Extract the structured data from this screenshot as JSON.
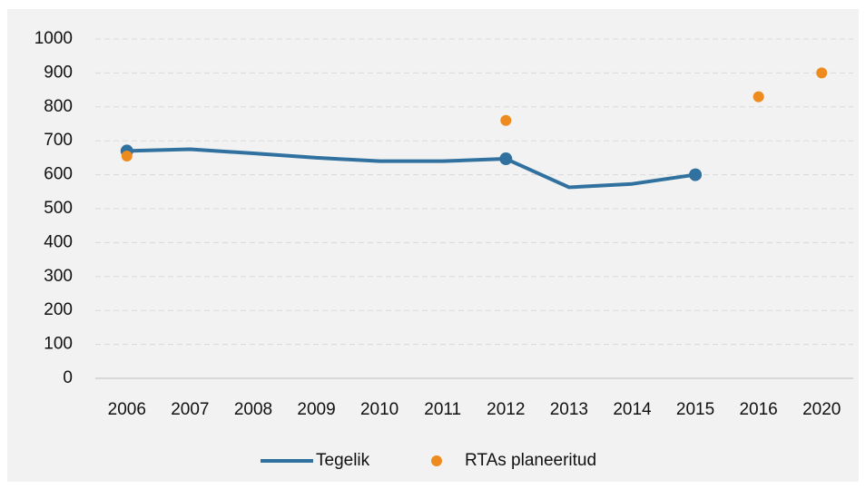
{
  "chart_data": {
    "type": "line",
    "categories": [
      "2006",
      "2007",
      "2008",
      "2009",
      "2010",
      "2011",
      "2012",
      "2013",
      "2014",
      "2015",
      "2016",
      "2020"
    ],
    "series": [
      {
        "name": "Tegelik",
        "type": "line",
        "color": "#31719f",
        "values": [
          670,
          675,
          663,
          650,
          640,
          640,
          647,
          563,
          573,
          600,
          null,
          null
        ],
        "markers": [
          true,
          false,
          false,
          false,
          false,
          false,
          true,
          false,
          false,
          true,
          false,
          false
        ]
      },
      {
        "name": "RTAs planeeritud",
        "type": "scatter",
        "color": "#ed8b1f",
        "values": [
          655,
          null,
          null,
          null,
          null,
          null,
          760,
          null,
          null,
          null,
          830,
          900
        ]
      }
    ],
    "ylim": [
      0,
      1000
    ],
    "yticks": [
      0,
      100,
      200,
      300,
      400,
      500,
      600,
      700,
      800,
      900,
      1000
    ],
    "grid": true,
    "legend": "bottom"
  }
}
